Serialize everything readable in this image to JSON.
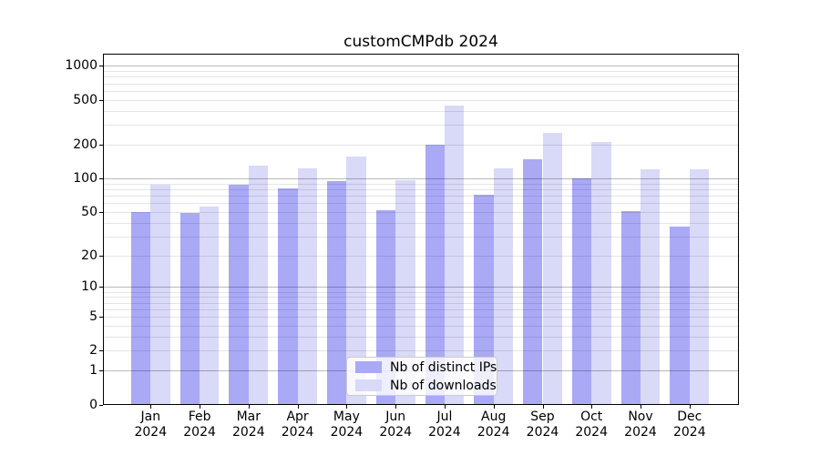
{
  "title": "customCMPdb 2024",
  "chart_data": {
    "type": "bar",
    "title": "customCMPdb 2024",
    "categories": [
      "Jan",
      "Feb",
      "Mar",
      "Apr",
      "May",
      "Jun",
      "Jul",
      "Aug",
      "Sep",
      "Oct",
      "Nov",
      "Dec"
    ],
    "x_tick_year": "2024",
    "series": [
      {
        "name": "Nb of distinct IPs",
        "color": "#a9a9f6",
        "values": [
          50,
          49,
          87,
          82,
          95,
          52,
          199,
          71,
          148,
          100,
          51,
          37
        ]
      },
      {
        "name": "Nb of downloads",
        "color": "#d9d9f8",
        "values": [
          87,
          56,
          129,
          123,
          158,
          96,
          448,
          124,
          256,
          213,
          120,
          120
        ]
      }
    ],
    "y_scale": "log10(1+x)",
    "y_ticks": [
      0,
      1,
      2,
      5,
      10,
      20,
      50,
      100,
      200,
      500,
      1000
    ],
    "ylim": [
      0,
      1300
    ],
    "xlabel": "",
    "ylabel": "",
    "grid": "horizontal, major (powers of 10) dark, minor light",
    "legend_position": "lower center inside plot",
    "colors": {
      "distinct_ips_bar": "#a9a9f6",
      "downloads_bar": "#d9d9f8",
      "spine": "#000000",
      "major_grid": "#bababa",
      "minor_grid": "#e6e6e6",
      "legend_border": "#cccccc",
      "background": "#ffffff"
    }
  }
}
